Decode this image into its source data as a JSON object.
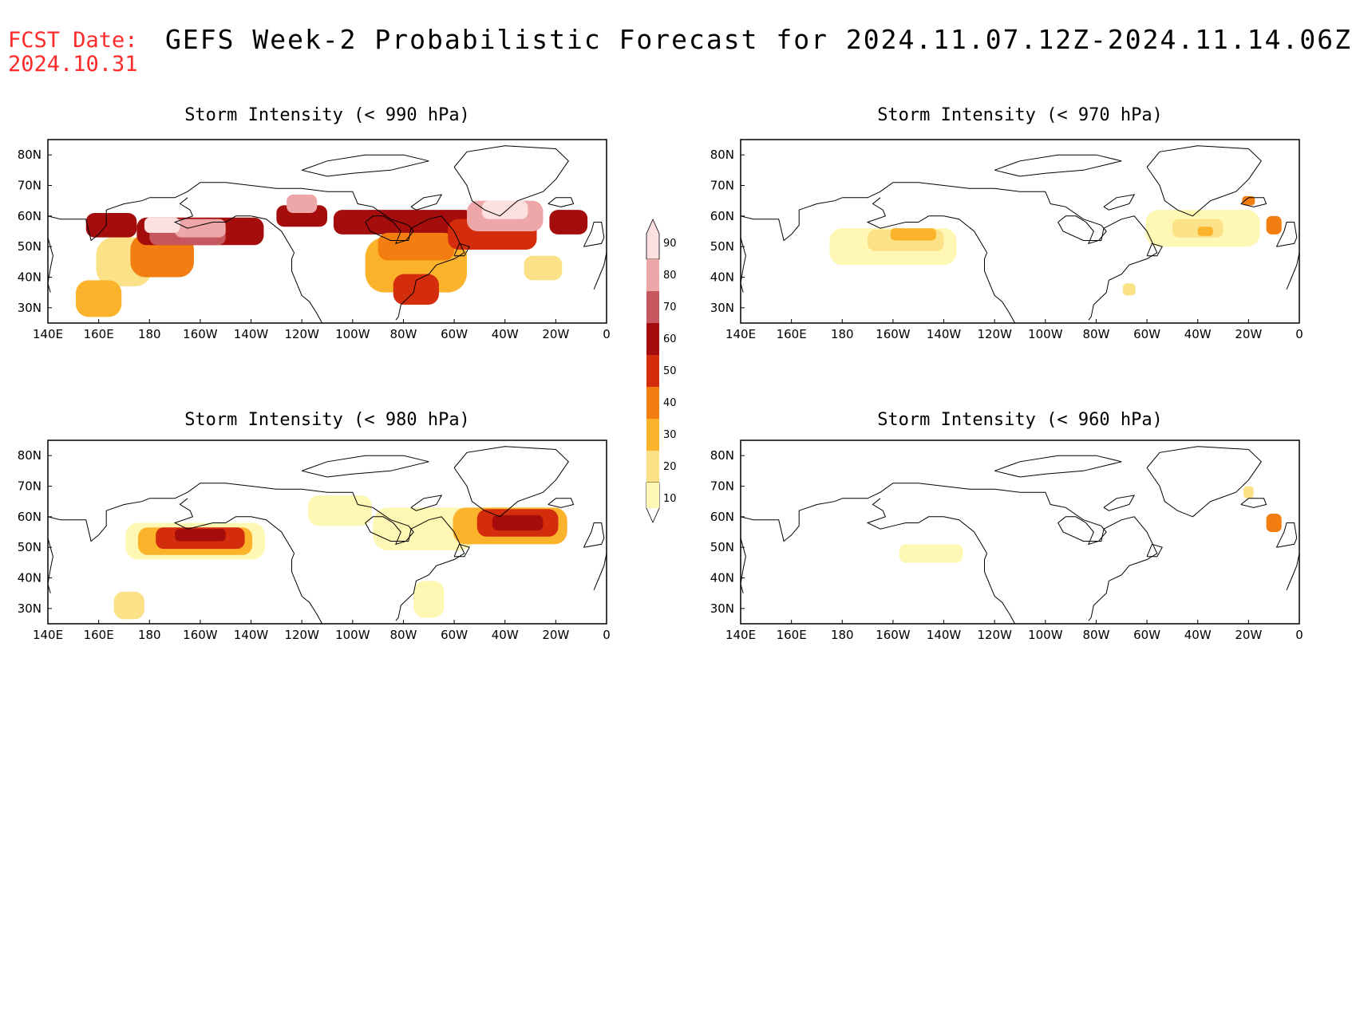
{
  "header": {
    "fcst_label": "FCST Date:",
    "fcst_date": "2024.10.31",
    "title": "GEFS Week-2 Probabilistic Forecast for 2024.11.07.12Z-2024.11.14.06Z"
  },
  "colors": {
    "fcst": "#ff2a2a",
    "levels": [
      "#fff7b4",
      "#fbe289",
      "#fbb32b",
      "#f27d10",
      "#d42d0d",
      "#a50c0c",
      "#c7575e",
      "#eda7a9",
      "#fde1e1"
    ]
  },
  "axes": {
    "x_ticks": [
      "140E",
      "160E",
      "180",
      "160W",
      "140W",
      "120W",
      "100W",
      "80W",
      "60W",
      "40W",
      "20W",
      "0"
    ],
    "y_ticks": [
      "80N",
      "70N",
      "60N",
      "50N",
      "40N",
      "30N"
    ]
  },
  "colorbar": {
    "labels": [
      "10",
      "20",
      "30",
      "40",
      "50",
      "60",
      "70",
      "80",
      "90"
    ]
  },
  "panels": [
    {
      "id": "p990",
      "title": "Storm Intensity (< 990 hPa)",
      "threshold_hPa": 990,
      "blobs": [
        {
          "lon": 170,
          "lat": 45,
          "w": 22,
          "h": 16,
          "level": 1
        },
        {
          "lon": 185,
          "lat": 47,
          "w": 25,
          "h": 14,
          "level": 3
        },
        {
          "lon": 160,
          "lat": 33,
          "w": 18,
          "h": 12,
          "level": 2
        },
        {
          "lon": 165,
          "lat": 57,
          "w": 20,
          "h": 8,
          "level": 5
        },
        {
          "lon": 200,
          "lat": 55,
          "w": 50,
          "h": 9,
          "level": 5
        },
        {
          "lon": 195,
          "lat": 54,
          "w": 30,
          "h": 7,
          "level": 6
        },
        {
          "lon": 200,
          "lat": 56,
          "w": 20,
          "h": 6,
          "level": 7
        },
        {
          "lon": 185,
          "lat": 57,
          "w": 14,
          "h": 5,
          "level": 8
        },
        {
          "lon": 240,
          "lat": 60,
          "w": 20,
          "h": 7,
          "level": 5
        },
        {
          "lon": 240,
          "lat": 64,
          "w": 12,
          "h": 6,
          "level": 7
        },
        {
          "lon": 280,
          "lat": 58,
          "w": 55,
          "h": 8,
          "level": 5
        },
        {
          "lon": 285,
          "lat": 44,
          "w": 40,
          "h": 18,
          "level": 2
        },
        {
          "lon": 285,
          "lat": 50,
          "w": 30,
          "h": 9,
          "level": 3
        },
        {
          "lon": 285,
          "lat": 36,
          "w": 18,
          "h": 10,
          "level": 4
        },
        {
          "lon": 315,
          "lat": 54,
          "w": 35,
          "h": 10,
          "level": 4
        },
        {
          "lon": 320,
          "lat": 60,
          "w": 30,
          "h": 10,
          "level": 7
        },
        {
          "lon": 320,
          "lat": 62,
          "w": 18,
          "h": 6,
          "level": 8
        },
        {
          "lon": 335,
          "lat": 43,
          "w": 15,
          "h": 8,
          "level": 1
        },
        {
          "lon": 345,
          "lat": 58,
          "w": 15,
          "h": 8,
          "level": 5
        }
      ]
    },
    {
      "id": "p970",
      "title": "Storm Intensity (< 970 hPa)",
      "threshold_hPa": 970,
      "blobs": [
        {
          "lon": 200,
          "lat": 50,
          "w": 50,
          "h": 12,
          "level": 0
        },
        {
          "lon": 205,
          "lat": 52,
          "w": 30,
          "h": 7,
          "level": 1
        },
        {
          "lon": 208,
          "lat": 54,
          "w": 18,
          "h": 4,
          "level": 2
        },
        {
          "lon": 322,
          "lat": 56,
          "w": 45,
          "h": 12,
          "level": 0
        },
        {
          "lon": 320,
          "lat": 56,
          "w": 20,
          "h": 6,
          "level": 1
        },
        {
          "lon": 323,
          "lat": 55,
          "w": 6,
          "h": 3,
          "level": 2
        },
        {
          "lon": 293,
          "lat": 36,
          "w": 5,
          "h": 4,
          "level": 1
        },
        {
          "lon": 350,
          "lat": 57,
          "w": 6,
          "h": 6,
          "level": 3
        },
        {
          "lon": 340,
          "lat": 65,
          "w": 5,
          "h": 3,
          "level": 3
        }
      ]
    },
    {
      "id": "p980",
      "title": "Storm Intensity (< 980 hPa)",
      "threshold_hPa": 980,
      "blobs": [
        {
          "lon": 198,
          "lat": 52,
          "w": 55,
          "h": 12,
          "level": 0
        },
        {
          "lon": 198,
          "lat": 52,
          "w": 45,
          "h": 9,
          "level": 2
        },
        {
          "lon": 200,
          "lat": 53,
          "w": 35,
          "h": 7,
          "level": 4
        },
        {
          "lon": 200,
          "lat": 54,
          "w": 20,
          "h": 4,
          "level": 5
        },
        {
          "lon": 172,
          "lat": 31,
          "w": 12,
          "h": 9,
          "level": 1
        },
        {
          "lon": 255,
          "lat": 62,
          "w": 25,
          "h": 10,
          "level": 0
        },
        {
          "lon": 288,
          "lat": 56,
          "w": 40,
          "h": 14,
          "level": 0
        },
        {
          "lon": 322,
          "lat": 57,
          "w": 45,
          "h": 12,
          "level": 2
        },
        {
          "lon": 325,
          "lat": 58,
          "w": 32,
          "h": 9,
          "level": 4
        },
        {
          "lon": 325,
          "lat": 58,
          "w": 20,
          "h": 5,
          "level": 5
        },
        {
          "lon": 290,
          "lat": 33,
          "w": 12,
          "h": 12,
          "level": 0
        }
      ]
    },
    {
      "id": "p960",
      "title": "Storm Intensity (< 960 hPa)",
      "threshold_hPa": 960,
      "blobs": [
        {
          "lon": 215,
          "lat": 48,
          "w": 25,
          "h": 6,
          "level": 0
        },
        {
          "lon": 340,
          "lat": 68,
          "w": 4,
          "h": 4,
          "level": 1
        },
        {
          "lon": 350,
          "lat": 58,
          "w": 6,
          "h": 6,
          "level": 3
        }
      ]
    }
  ]
}
